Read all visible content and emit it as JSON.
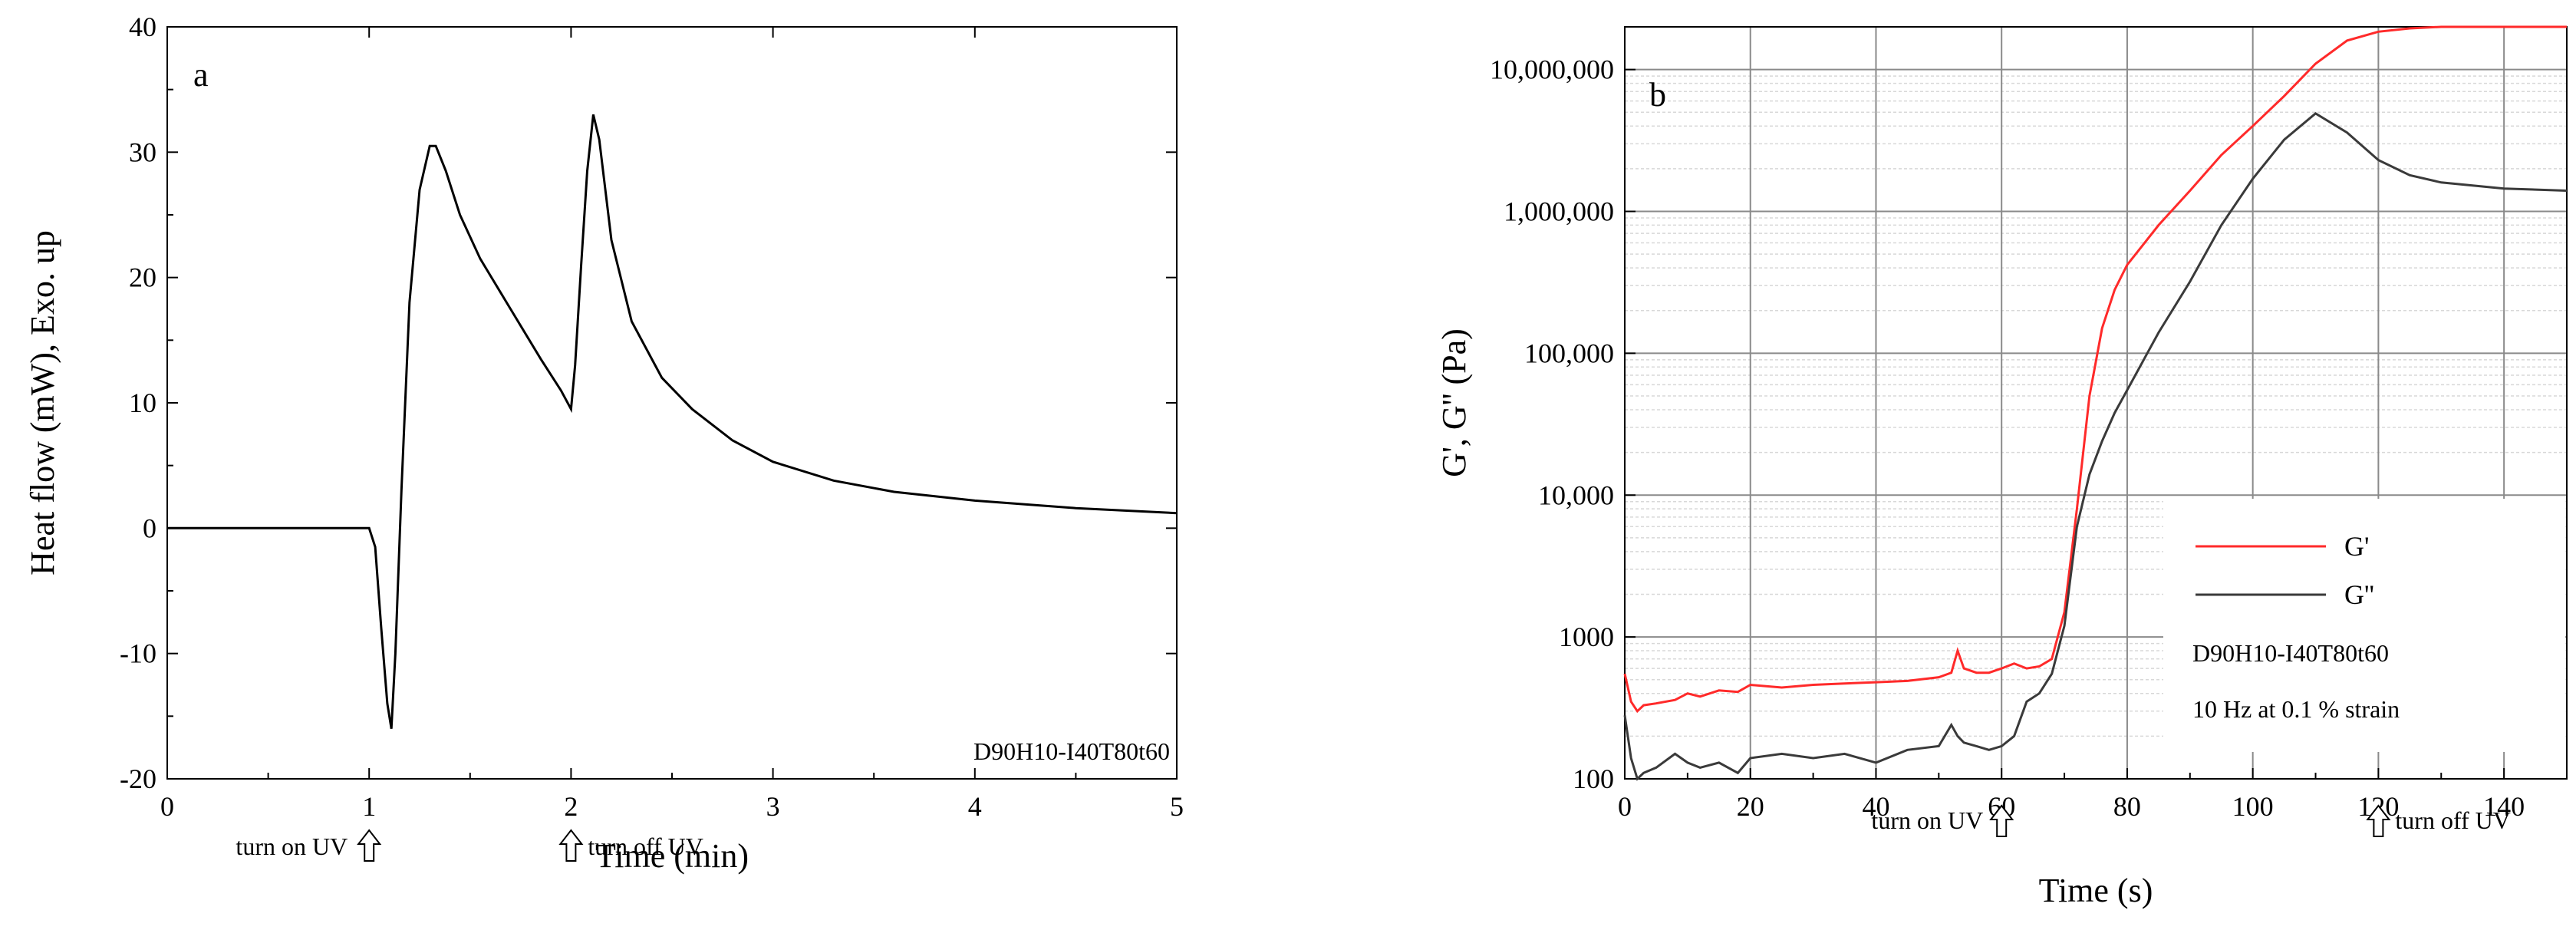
{
  "chart_data": [
    {
      "type": "line",
      "panel_label": "a",
      "xlabel": "Time (min)",
      "ylabel": "Heat flow (mW), Exo. up",
      "xlim": [
        0,
        5
      ],
      "ylim": [
        -20,
        40
      ],
      "x_ticks": [
        "0",
        "1",
        "2",
        "3",
        "4",
        "5"
      ],
      "y_ticks": [
        "-20",
        "-10",
        "0",
        "10",
        "20",
        "30",
        "40"
      ],
      "annotation": "D90H10-I40T80t60",
      "markers": [
        {
          "label": "turn on UV",
          "x": 1
        },
        {
          "label": "turn off UV",
          "x": 2
        }
      ],
      "series": [
        {
          "name": "Heat flow",
          "color": "#000000",
          "x": [
            0,
            1.0,
            1.03,
            1.06,
            1.09,
            1.11,
            1.13,
            1.16,
            1.2,
            1.25,
            1.3,
            1.33,
            1.38,
            1.45,
            1.55,
            1.7,
            1.85,
            1.95,
            2.0,
            2.02,
            2.05,
            2.08,
            2.11,
            2.14,
            2.2,
            2.3,
            2.45,
            2.6,
            2.8,
            3.0,
            3.3,
            3.6,
            4.0,
            4.5,
            5.0
          ],
          "y": [
            0,
            0,
            -1.5,
            -8,
            -14,
            -16,
            -10,
            3,
            18,
            27,
            30.5,
            30.5,
            28.5,
            25,
            21.5,
            17.5,
            13.5,
            11,
            9.5,
            13,
            21,
            28.5,
            33,
            31,
            23,
            16.5,
            12,
            9.5,
            7,
            5.3,
            3.8,
            2.9,
            2.2,
            1.6,
            1.2
          ]
        }
      ]
    },
    {
      "type": "line",
      "panel_label": "b",
      "xlabel": "Time (s)",
      "ylabel": "G', G'' (Pa)",
      "xlim": [
        0,
        150
      ],
      "ylim": [
        100,
        20000000
      ],
      "yscale": "log",
      "x_ticks": [
        "0",
        "20",
        "40",
        "60",
        "80",
        "100",
        "120",
        "140"
      ],
      "y_ticks": [
        "100",
        "1000",
        "10,000",
        "100,000",
        "1,000,000",
        "10,000,000"
      ],
      "markers": [
        {
          "label": "turn on UV",
          "x": 60
        },
        {
          "label": "turn off UV",
          "x": 120
        }
      ],
      "annotations": [
        "D90H10-I40T80t60",
        "10 Hz at 0.1 % strain"
      ],
      "series": [
        {
          "name": "G'",
          "color": "#ff2a2a",
          "x": [
            0,
            1,
            2,
            3,
            5,
            8,
            10,
            12,
            15,
            18,
            20,
            25,
            30,
            35,
            40,
            45,
            50,
            52,
            53,
            54,
            56,
            58,
            60,
            62,
            64,
            66,
            68,
            70,
            72,
            74,
            76,
            78,
            80,
            85,
            90,
            95,
            100,
            105,
            110,
            115,
            120,
            125,
            130,
            140,
            150
          ],
          "y": [
            550,
            350,
            300,
            330,
            340,
            360,
            400,
            380,
            420,
            410,
            460,
            440,
            460,
            470,
            480,
            490,
            520,
            560,
            800,
            600,
            560,
            560,
            600,
            650,
            600,
            620,
            700,
            1500,
            8000,
            50000,
            150000,
            280000,
            420000,
            800000,
            1400000,
            2500000,
            4000000,
            6500000,
            11000000,
            16000000,
            18500000,
            19500000,
            20000000,
            20000000,
            20000000
          ]
        },
        {
          "name": "G''",
          "color": "#3a3a3a",
          "x": [
            0,
            1,
            2,
            3,
            5,
            8,
            10,
            12,
            15,
            18,
            20,
            25,
            30,
            35,
            40,
            45,
            50,
            52,
            53,
            54,
            56,
            58,
            60,
            62,
            64,
            66,
            68,
            70,
            72,
            74,
            76,
            78,
            80,
            85,
            90,
            95,
            100,
            105,
            110,
            115,
            120,
            125,
            130,
            140,
            150
          ],
          "y": [
            280,
            140,
            100,
            110,
            120,
            150,
            130,
            120,
            130,
            110,
            140,
            150,
            140,
            150,
            130,
            160,
            170,
            240,
            200,
            180,
            170,
            160,
            170,
            200,
            350,
            400,
            550,
            1200,
            6000,
            14000,
            24000,
            38000,
            55000,
            140000,
            320000,
            800000,
            1700000,
            3200000,
            4900000,
            3600000,
            2300000,
            1800000,
            1600000,
            1450000,
            1400000
          ]
        }
      ]
    }
  ]
}
